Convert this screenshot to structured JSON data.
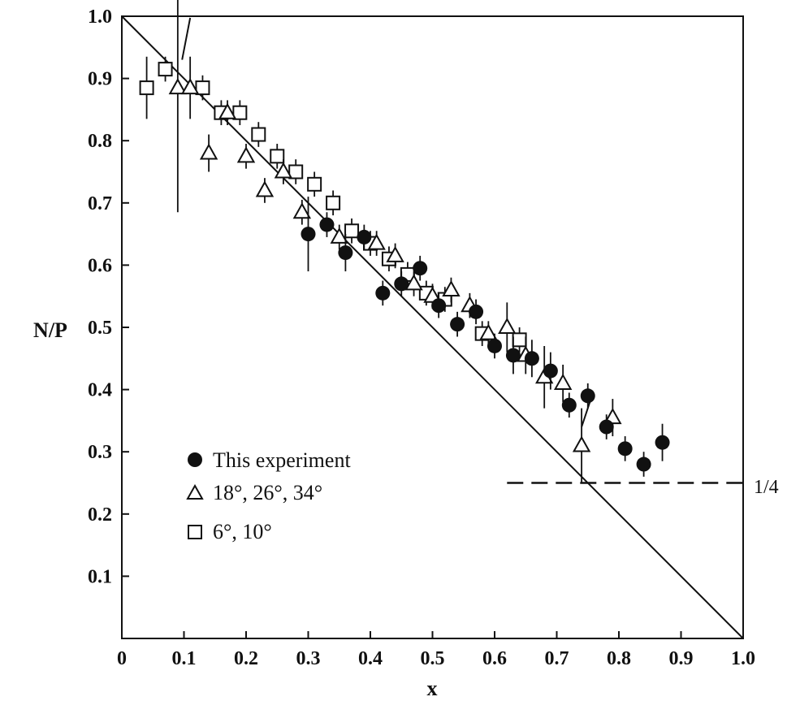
{
  "chart_data": {
    "type": "scatter",
    "xlabel": "x",
    "ylabel": "N/P",
    "xlim": [
      0,
      1.0
    ],
    "ylim": [
      0,
      1.0
    ],
    "x_ticks": [
      "0",
      "0.1",
      "0.2",
      "0.3",
      "0.4",
      "0.5",
      "0.6",
      "0.7",
      "0.8",
      "0.9",
      "1.0"
    ],
    "y_ticks": [
      "0.1",
      "0.2",
      "0.3",
      "0.4",
      "0.5",
      "0.6",
      "0.7",
      "0.8",
      "0.9",
      "1.0"
    ],
    "grid": false,
    "legend_position": "bottom-left",
    "reference_lines": [
      {
        "kind": "line",
        "from": [
          0,
          1.0
        ],
        "to": [
          1.0,
          0
        ]
      },
      {
        "kind": "dashed",
        "y": 0.25,
        "x_from": 0.62,
        "x_to": 1.0,
        "label": "1/4"
      }
    ],
    "series": [
      {
        "name": "This experiment",
        "marker": "filled-circle",
        "points": [
          {
            "x": 0.3,
            "y": 0.65,
            "err": 0.06
          },
          {
            "x": 0.33,
            "y": 0.665,
            "err": 0.02
          },
          {
            "x": 0.36,
            "y": 0.62,
            "err": 0.03
          },
          {
            "x": 0.39,
            "y": 0.645,
            "err": 0.02
          },
          {
            "x": 0.42,
            "y": 0.555,
            "err": 0.02
          },
          {
            "x": 0.45,
            "y": 0.57,
            "err": 0.02
          },
          {
            "x": 0.48,
            "y": 0.595,
            "err": 0.02
          },
          {
            "x": 0.51,
            "y": 0.535,
            "err": 0.02
          },
          {
            "x": 0.54,
            "y": 0.505,
            "err": 0.02
          },
          {
            "x": 0.57,
            "y": 0.525,
            "err": 0.02
          },
          {
            "x": 0.6,
            "y": 0.47,
            "err": 0.02
          },
          {
            "x": 0.63,
            "y": 0.455,
            "err": 0.03
          },
          {
            "x": 0.66,
            "y": 0.45,
            "err": 0.03
          },
          {
            "x": 0.69,
            "y": 0.43,
            "err": 0.03
          },
          {
            "x": 0.72,
            "y": 0.375,
            "err": 0.02
          },
          {
            "x": 0.75,
            "y": 0.39,
            "err": 0.02
          },
          {
            "x": 0.78,
            "y": 0.34,
            "err": 0.02
          },
          {
            "x": 0.81,
            "y": 0.305,
            "err": 0.02
          },
          {
            "x": 0.84,
            "y": 0.28,
            "err": 0.02
          },
          {
            "x": 0.87,
            "y": 0.315,
            "err": 0.03
          }
        ]
      },
      {
        "name": "18°, 26°, 34°",
        "marker": "open-triangle",
        "points": [
          {
            "x": 0.09,
            "y": 0.885,
            "err": 0.2
          },
          {
            "x": 0.11,
            "y": 0.885,
            "err": 0.05
          },
          {
            "x": 0.14,
            "y": 0.78,
            "err": 0.03
          },
          {
            "x": 0.17,
            "y": 0.845,
            "err": 0.02
          },
          {
            "x": 0.2,
            "y": 0.775,
            "err": 0.02
          },
          {
            "x": 0.23,
            "y": 0.72,
            "err": 0.02
          },
          {
            "x": 0.26,
            "y": 0.75,
            "err": 0.02
          },
          {
            "x": 0.29,
            "y": 0.685,
            "err": 0.02
          },
          {
            "x": 0.35,
            "y": 0.645,
            "err": 0.02
          },
          {
            "x": 0.41,
            "y": 0.635,
            "err": 0.02
          },
          {
            "x": 0.44,
            "y": 0.615,
            "err": 0.02
          },
          {
            "x": 0.47,
            "y": 0.57,
            "err": 0.02
          },
          {
            "x": 0.5,
            "y": 0.55,
            "err": 0.02
          },
          {
            "x": 0.53,
            "y": 0.56,
            "err": 0.02
          },
          {
            "x": 0.56,
            "y": 0.535,
            "err": 0.02
          },
          {
            "x": 0.59,
            "y": 0.49,
            "err": 0.02
          },
          {
            "x": 0.62,
            "y": 0.5,
            "err": 0.04
          },
          {
            "x": 0.65,
            "y": 0.455,
            "err": 0.03
          },
          {
            "x": 0.68,
            "y": 0.42,
            "err": 0.05
          },
          {
            "x": 0.71,
            "y": 0.41,
            "err": 0.03
          },
          {
            "x": 0.74,
            "y": 0.31,
            "err": 0.06
          },
          {
            "x": 0.79,
            "y": 0.355,
            "err": 0.03
          }
        ]
      },
      {
        "name": "6°, 10°",
        "marker": "open-square",
        "points": [
          {
            "x": 0.04,
            "y": 0.885,
            "err": 0.05
          },
          {
            "x": 0.07,
            "y": 0.915,
            "err": 0.02
          },
          {
            "x": 0.13,
            "y": 0.885,
            "err": 0.02
          },
          {
            "x": 0.16,
            "y": 0.845,
            "err": 0.02
          },
          {
            "x": 0.19,
            "y": 0.845,
            "err": 0.02
          },
          {
            "x": 0.22,
            "y": 0.81,
            "err": 0.02
          },
          {
            "x": 0.25,
            "y": 0.775,
            "err": 0.02
          },
          {
            "x": 0.28,
            "y": 0.75,
            "err": 0.02
          },
          {
            "x": 0.31,
            "y": 0.73,
            "err": 0.02
          },
          {
            "x": 0.34,
            "y": 0.7,
            "err": 0.02
          },
          {
            "x": 0.37,
            "y": 0.655,
            "err": 0.02
          },
          {
            "x": 0.4,
            "y": 0.635,
            "err": 0.02
          },
          {
            "x": 0.43,
            "y": 0.61,
            "err": 0.02
          },
          {
            "x": 0.46,
            "y": 0.585,
            "err": 0.02
          },
          {
            "x": 0.49,
            "y": 0.555,
            "err": 0.02
          },
          {
            "x": 0.52,
            "y": 0.545,
            "err": 0.02
          },
          {
            "x": 0.58,
            "y": 0.49,
            "err": 0.02
          },
          {
            "x": 0.64,
            "y": 0.48,
            "err": 0.02
          }
        ]
      }
    ]
  }
}
